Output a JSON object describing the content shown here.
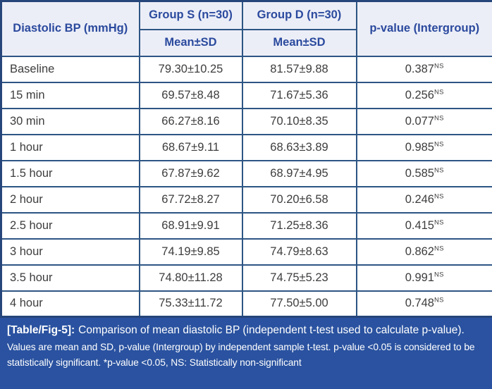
{
  "table": {
    "corner_label": "Diastolic BP (mmHg)",
    "group_s_header": "Group S (n=30)",
    "group_d_header": "Group D (n=30)",
    "subheader_mean_sd": "Mean±SD",
    "pvalue_header": "p-value (Intergroup)",
    "rows": [
      {
        "label": "Baseline",
        "s": "79.30±10.25",
        "d": "81.57±9.88",
        "p": "0.387",
        "sig": "NS"
      },
      {
        "label": "15 min",
        "s": "69.57±8.48",
        "d": "71.67±5.36",
        "p": "0.256",
        "sig": "NS"
      },
      {
        "label": "30 min",
        "s": "66.27±8.16",
        "d": "70.10±8.35",
        "p": "0.077",
        "sig": "NS"
      },
      {
        "label": "1 hour",
        "s": "68.67±9.11",
        "d": "68.63±3.89",
        "p": "0.985",
        "sig": "NS"
      },
      {
        "label": "1.5 hour",
        "s": "67.87±9.62",
        "d": "68.97±4.95",
        "p": "0.585",
        "sig": "NS"
      },
      {
        "label": "2 hour",
        "s": "67.72±8.27",
        "d": "70.20±6.58",
        "p": "0.246",
        "sig": "NS"
      },
      {
        "label": "2.5 hour",
        "s": "68.91±9.91",
        "d": "71.25±8.36",
        "p": "0.415",
        "sig": "NS"
      },
      {
        "label": "3 hour",
        "s": "74.19±9.85",
        "d": "74.79±8.63",
        "p": "0.862",
        "sig": "NS"
      },
      {
        "label": "3.5 hour",
        "s": "74.80±11.28",
        "d": "74.75±5.23",
        "p": "0.991",
        "sig": "NS"
      },
      {
        "label": "4 hour",
        "s": "75.33±11.72",
        "d": "77.50±5.00",
        "p": "0.748",
        "sig": "NS"
      }
    ]
  },
  "caption": {
    "tag": "[Table/Fig-5]:",
    "text": "Comparison of mean diastolic BP (independent t-test used to calculate p-value)."
  },
  "footnote": "Values are mean and SD, p-value (Intergroup) by independent sample t-test. p-value <0.05 is considered to be statistically significant. *p-value <0.05, NS: Statistically non-significant",
  "colors": {
    "header_text": "#2b4a9e",
    "header_bg": "#eceef7",
    "grid_border": "#2d5584",
    "outer_border": "#26457b",
    "caption_bg": "#2a52a0",
    "body_text": "#3d3d3d"
  }
}
